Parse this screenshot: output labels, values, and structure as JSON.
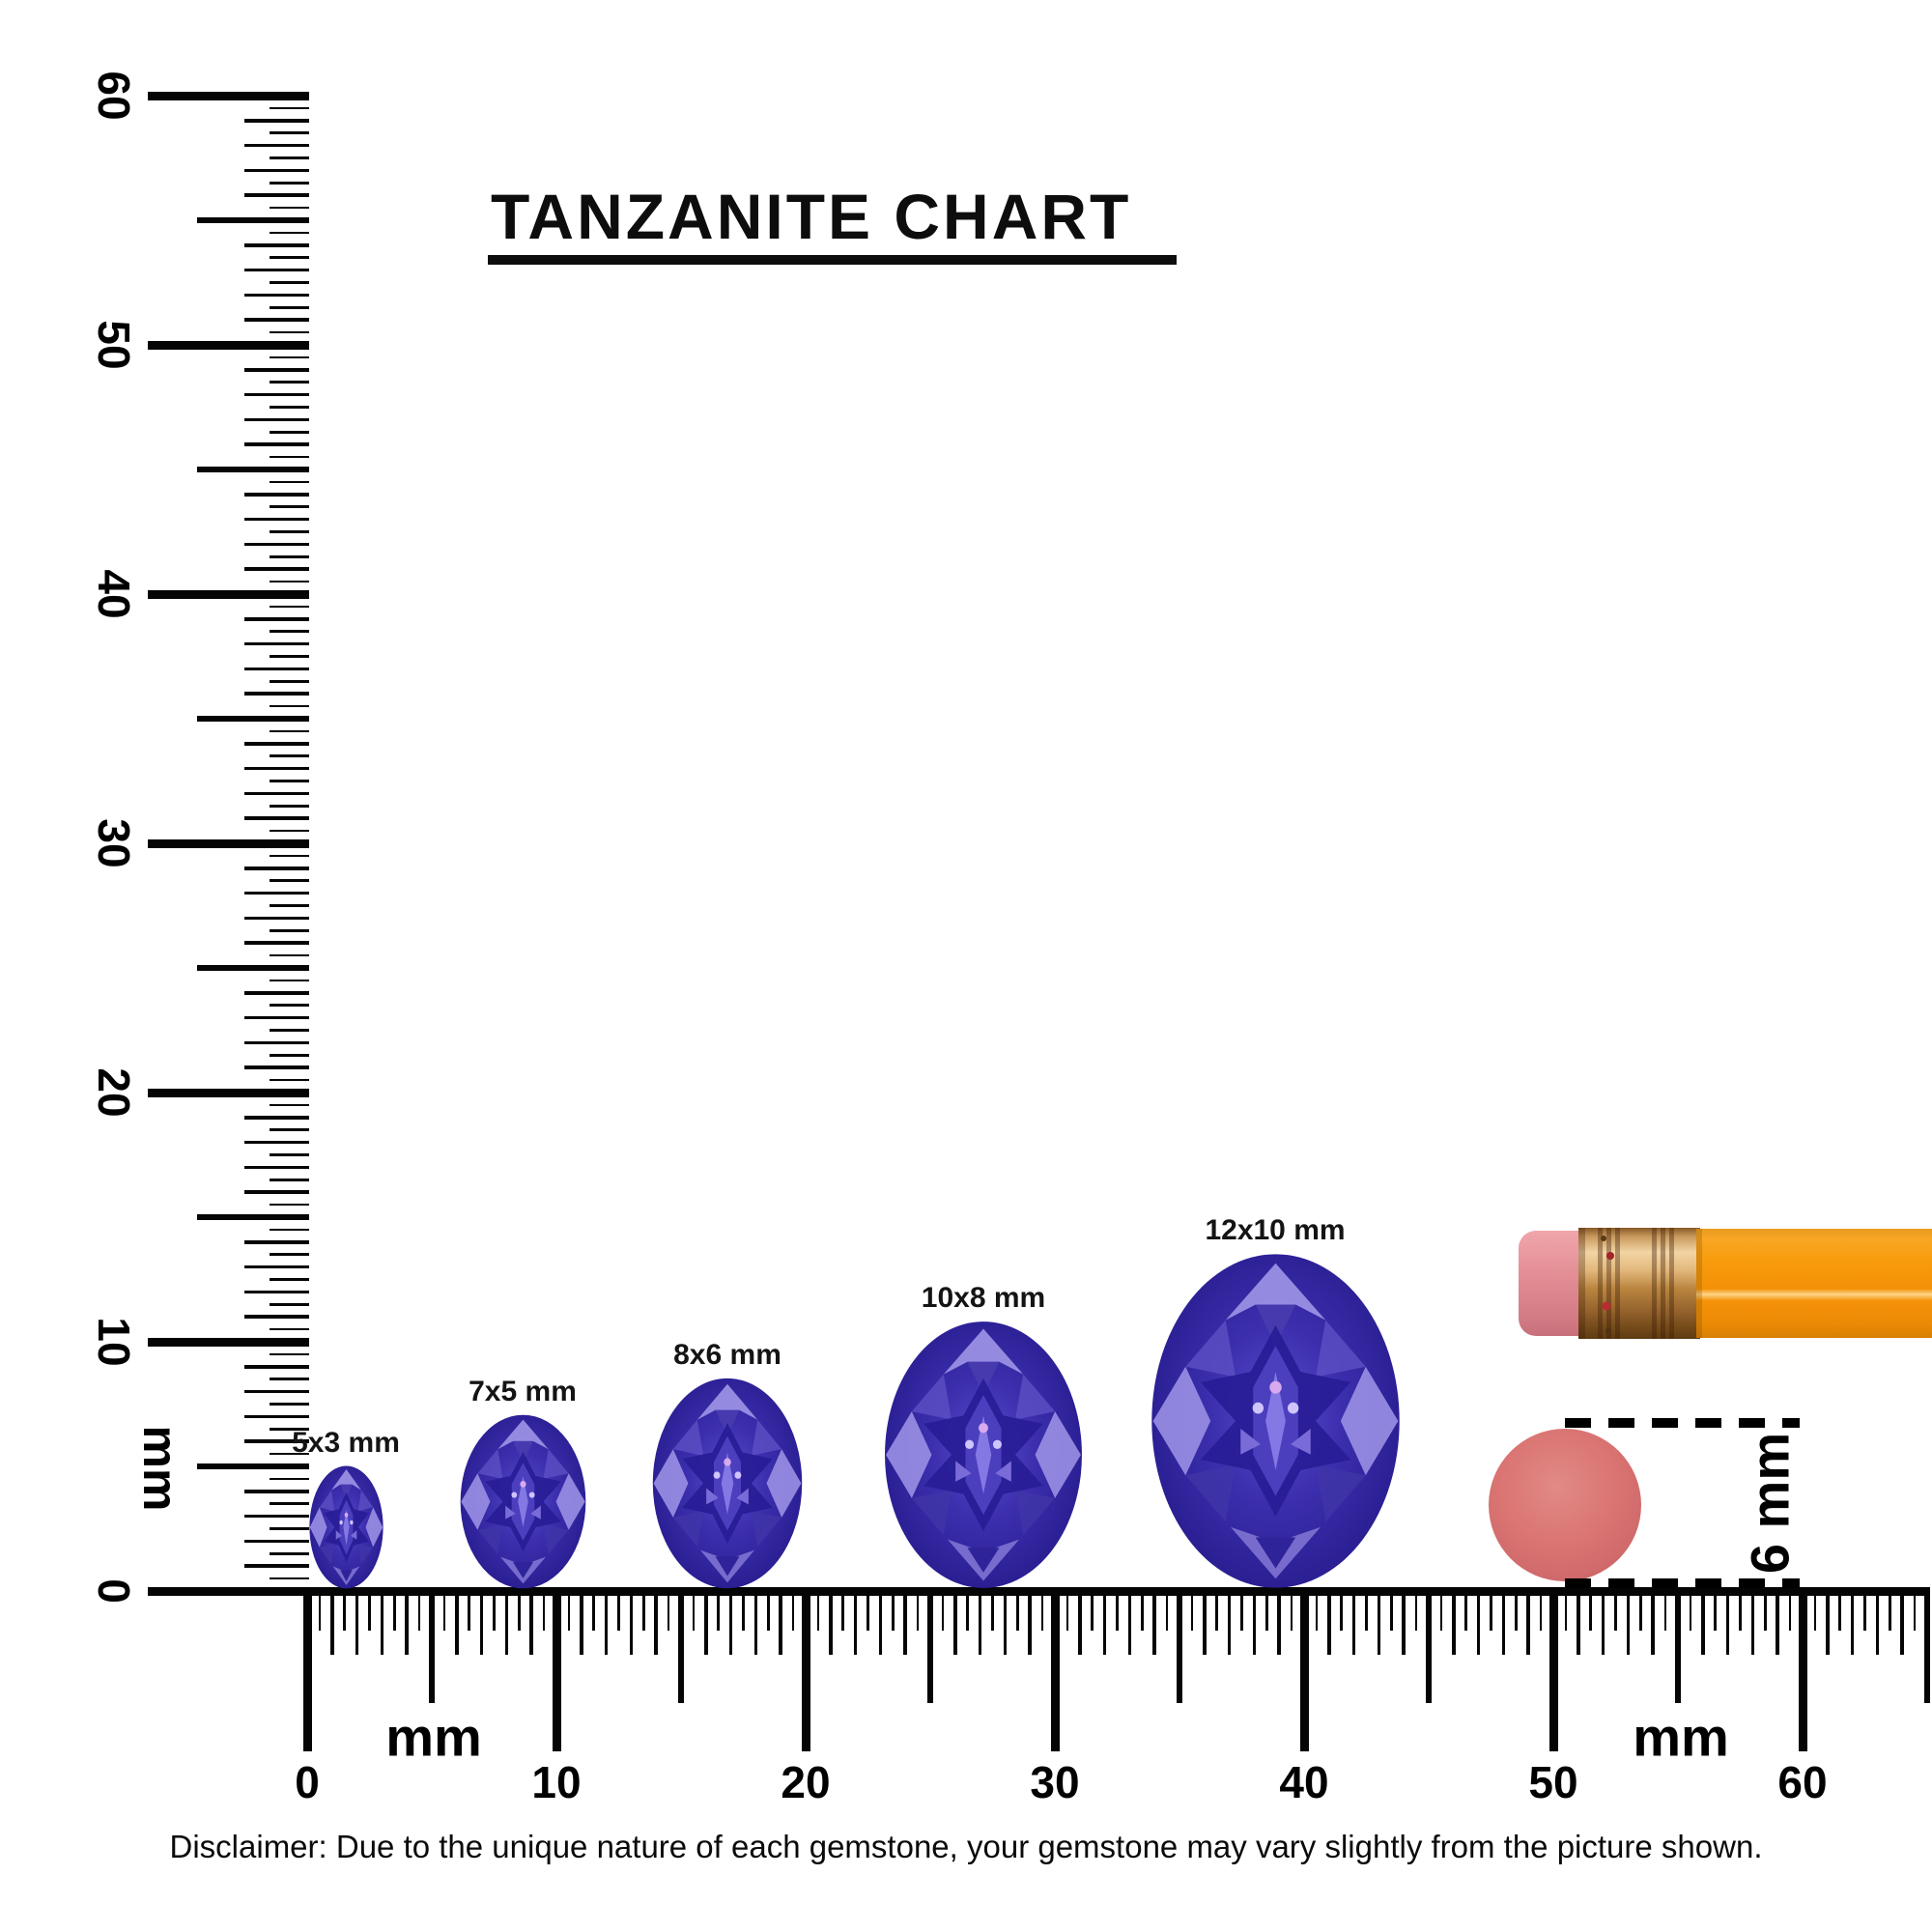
{
  "title": "TANZANITE CHART",
  "chart_data": {
    "type": "table",
    "title": "TANZANITE CHART",
    "description": "Oval tanzanite gemstone millimeter size comparison shown against mm rulers, a pencil and a 6 mm eraser circle",
    "unit": "mm",
    "gems": [
      {
        "label": "5x3 mm",
        "length_mm": 5,
        "width_mm": 3
      },
      {
        "label": "7x5 mm",
        "length_mm": 7,
        "width_mm": 5
      },
      {
        "label": "8x6 mm",
        "length_mm": 8,
        "width_mm": 6
      },
      {
        "label": "10x8 mm",
        "length_mm": 10,
        "width_mm": 8
      },
      {
        "label": "12x10 mm",
        "length_mm": 12,
        "width_mm": 10
      }
    ],
    "reference_objects": [
      {
        "name": "eraser-circle",
        "label": "6 mm",
        "diameter_mm": 6
      },
      {
        "name": "pencil",
        "label": ""
      }
    ],
    "rulers": {
      "vertical": {
        "unit_label": "mm",
        "min": 0,
        "max": 60,
        "major_step": 10,
        "minor_step": 0.5,
        "labels": [
          "60",
          "50",
          "40",
          "30",
          "20",
          "10",
          "0"
        ]
      },
      "horizontal": {
        "unit_label": "mm",
        "min": 0,
        "max": 60,
        "major_step": 10,
        "minor_step": 0.5,
        "labels": [
          "0",
          "10",
          "20",
          "30",
          "40",
          "50",
          "60"
        ]
      }
    }
  },
  "labels": {
    "vertical_mm": "mm",
    "horizontal_mm_left": "mm",
    "horizontal_mm_right": "mm",
    "circle_size": "6 mm"
  },
  "disclaimer": "Disclaimer: Due to the unique nature of each gemstone, your gemstone may vary slightly from the picture shown.",
  "colors": {
    "ink": "#050505",
    "gem_base": "#382ba6",
    "gem_dark": "#170e66",
    "gem_light": "#9a90e4",
    "gem_sparkle": "#cfc4fb",
    "circle_fill": "#d76f6e",
    "pencil_body": "#f79a0d",
    "pencil_ferrule": "#c6924e",
    "pencil_eraser": "#e18a92"
  }
}
